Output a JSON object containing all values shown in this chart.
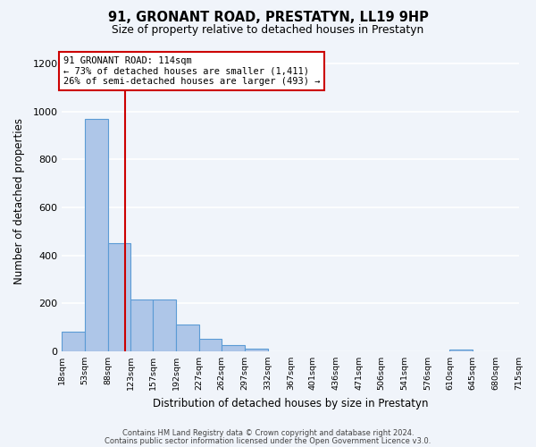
{
  "title": "91, GRONANT ROAD, PRESTATYN, LL19 9HP",
  "subtitle": "Size of property relative to detached houses in Prestatyn",
  "xlabel": "Distribution of detached houses by size in Prestatyn",
  "ylabel": "Number of detached properties",
  "bar_color": "#aec6e8",
  "bar_edge_color": "#5b9bd5",
  "bar_heights": [
    80,
    970,
    450,
    215,
    215,
    110,
    50,
    25,
    10,
    0,
    0,
    0,
    0,
    0,
    0,
    0,
    0,
    5,
    0,
    0
  ],
  "bin_edges": [
    18,
    53,
    88,
    123,
    157,
    192,
    227,
    262,
    297,
    332,
    367,
    401,
    436,
    471,
    506,
    541,
    576,
    610,
    645,
    680,
    715
  ],
  "x_tick_labels": [
    "18sqm",
    "53sqm",
    "88sqm",
    "123sqm",
    "157sqm",
    "192sqm",
    "227sqm",
    "262sqm",
    "297sqm",
    "332sqm",
    "367sqm",
    "401sqm",
    "436sqm",
    "471sqm",
    "506sqm",
    "541sqm",
    "576sqm",
    "610sqm",
    "645sqm",
    "680sqm",
    "715sqm"
  ],
  "property_size": 114,
  "vline_color": "#cc0000",
  "annotation_text": "91 GRONANT ROAD: 114sqm\n← 73% of detached houses are smaller (1,411)\n26% of semi-detached houses are larger (493) →",
  "annotation_box_color": "#ffffff",
  "annotation_box_edge": "#cc0000",
  "ylim": [
    0,
    1250
  ],
  "yticks": [
    0,
    200,
    400,
    600,
    800,
    1000,
    1200
  ],
  "footer_line1": "Contains HM Land Registry data © Crown copyright and database right 2024.",
  "footer_line2": "Contains public sector information licensed under the Open Government Licence v3.0.",
  "background_color": "#f0f4fa",
  "grid_color": "#ffffff"
}
